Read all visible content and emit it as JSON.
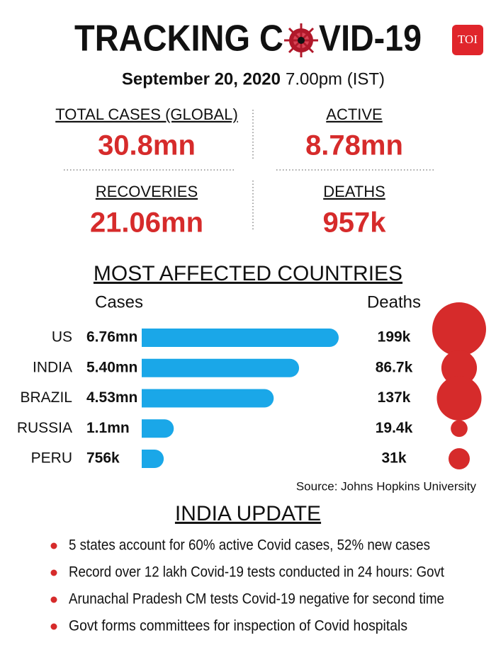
{
  "header": {
    "title_parts": [
      "TRACKING C",
      "VID-19"
    ],
    "logo": "TOI",
    "date": "September 20, 2020",
    "time": "7.00pm (IST)"
  },
  "stats": [
    {
      "label": "TOTAL CASES (GLOBAL)",
      "value": "30.8mn"
    },
    {
      "label": "ACTIVE",
      "value": "8.78mn"
    },
    {
      "label": "RECOVERIES",
      "value": "21.06mn"
    },
    {
      "label": "DEATHS",
      "value": "957k"
    }
  ],
  "chart_data": {
    "type": "bar",
    "title": "MOST AFFECTED COUNTRIES",
    "categories": [
      "US",
      "INDIA",
      "BRAZIL",
      "RUSSIA",
      "PERU"
    ],
    "series": [
      {
        "name": "Cases",
        "color": "#1aa7e8",
        "values": [
          6.76,
          5.4,
          4.53,
          1.1,
          0.756
        ],
        "value_labels": [
          "6.76mn",
          "5.40mn",
          "4.53mn",
          "1.1mn",
          "756k"
        ]
      },
      {
        "name": "Deaths",
        "color": "#d62b2b",
        "values": [
          199000,
          86700,
          137000,
          19400,
          31000
        ],
        "value_labels": [
          "199k",
          "86.7k",
          "137k",
          "19.4k",
          "31k"
        ]
      }
    ],
    "source": "Source: Johns Hopkins University"
  },
  "india_update": {
    "title": "INDIA UPDATE",
    "items": [
      "5 states account for 60% active Covid cases, 52% new cases",
      "Record over 12 lakh Covid-19 tests conducted in 24 hours: Govt",
      "Arunachal Pradesh CM tests Covid-19 negative for second time",
      "Govt forms committees for inspection of Covid hospitals"
    ]
  }
}
